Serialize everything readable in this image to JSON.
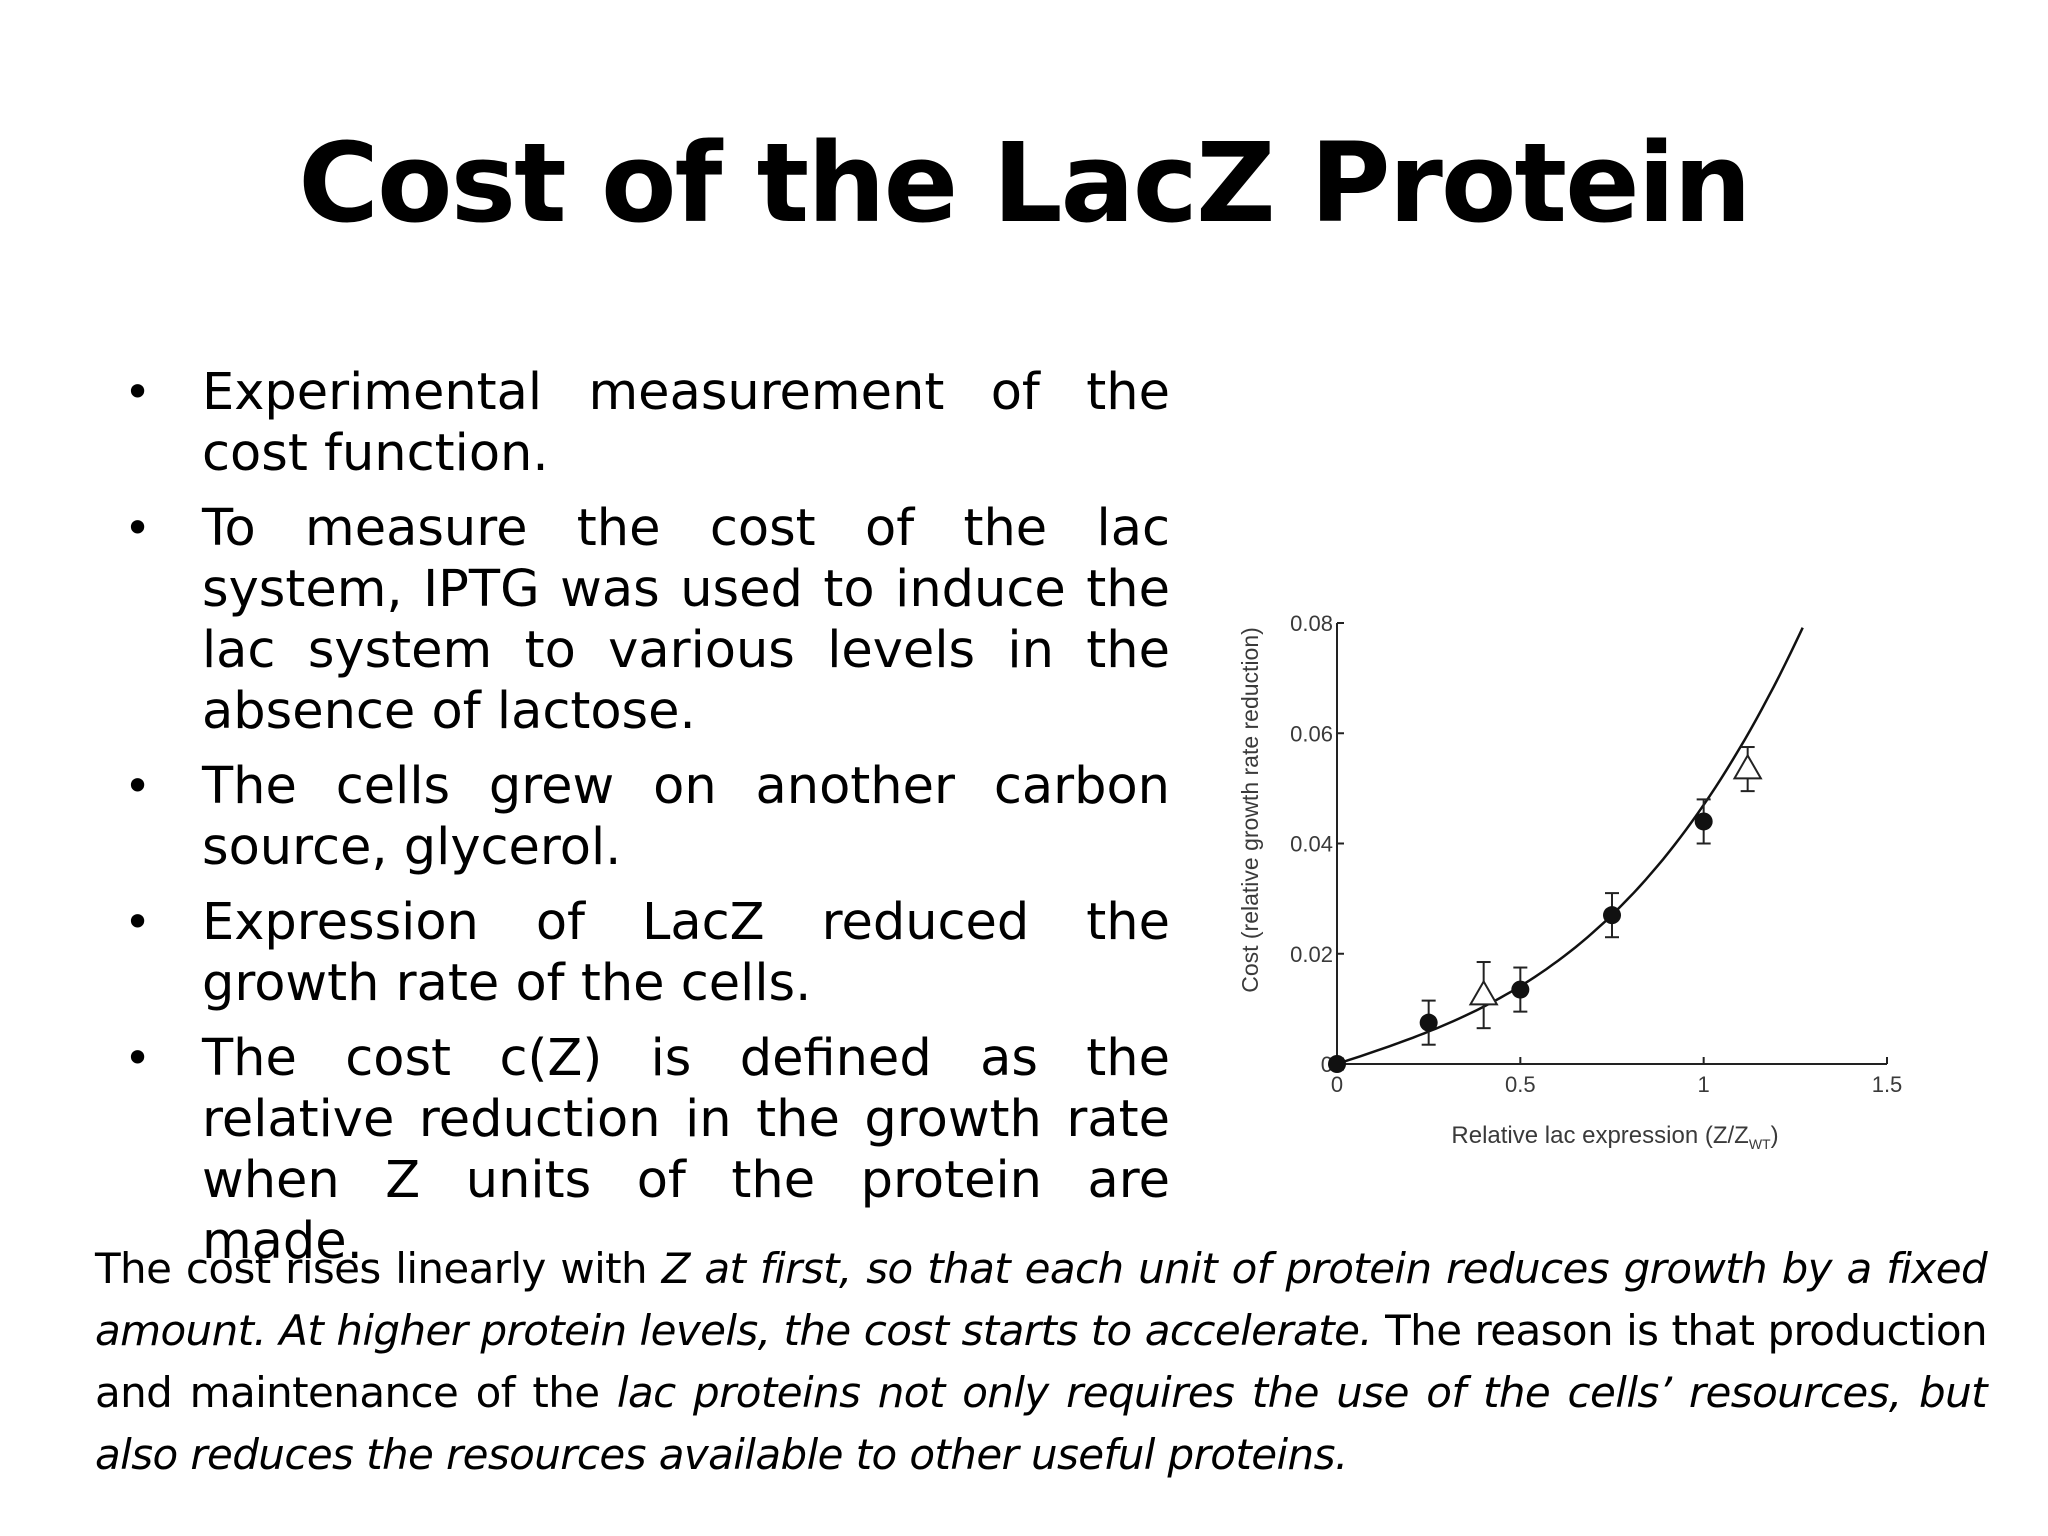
{
  "slide": {
    "title": "Cost of the LacZ Protein",
    "bullets": [
      "Experimental measurement of the cost function.",
      "To measure the cost of the lac system, IPTG was used to induce the lac system to various levels in the absence of lactose.",
      "The cells grew on another carbon source, glycerol.",
      "Expression of LacZ reduced the growth rate of the cells.",
      "The cost c(Z) is defined as the relative reduction in the growth rate when Z units of the protein are made."
    ],
    "caption": {
      "p1": "The cost rises linearly with ",
      "p2_italic": "Z at first, so that each unit of protein reduces growth by a fixed amount. At higher protein levels, the cost starts to accelerate.",
      "p3": " The reason is that production and maintenance of the ",
      "p4_italic": "lac proteins not only requires the use of the cells’ resources, but also reduces the resources available to other useful proteins."
    }
  },
  "chart_data": {
    "type": "scatter",
    "xlabel": "Relative lac expression (Z/Z",
    "xlabel_sub": "WT",
    "xlabel_close": ")",
    "ylabel": "Cost (relative growth rate reduction)",
    "xlim": [
      0,
      1.5
    ],
    "ylim": [
      0,
      0.08
    ],
    "x_ticks": [
      {
        "value": 0,
        "label": "0"
      },
      {
        "value": 0.5,
        "label": "0.5"
      },
      {
        "value": 1,
        "label": "1"
      },
      {
        "value": 1.5,
        "label": "1.5"
      }
    ],
    "y_ticks": [
      {
        "value": 0,
        "label": "0"
      },
      {
        "value": 0.02,
        "label": "0.02"
      },
      {
        "value": 0.04,
        "label": "0.04"
      },
      {
        "value": 0.06,
        "label": "0.06"
      },
      {
        "value": 0.08,
        "label": "0.08"
      }
    ],
    "series": [
      {
        "marker": "filled-circle",
        "points": [
          {
            "x": 0,
            "y": 0.0,
            "err": 0.001
          },
          {
            "x": 0.25,
            "y": 0.0075,
            "err": 0.004
          },
          {
            "x": 0.5,
            "y": 0.0135,
            "err": 0.004
          },
          {
            "x": 0.75,
            "y": 0.027,
            "err": 0.004
          },
          {
            "x": 1.0,
            "y": 0.044,
            "err": 0.004
          }
        ]
      },
      {
        "marker": "open-triangle",
        "points": [
          {
            "x": 0.4,
            "y": 0.0125,
            "err": 0.006
          },
          {
            "x": 1.12,
            "y": 0.0535,
            "err": 0.004
          }
        ]
      }
    ],
    "fit_curve": {
      "description": "accelerating fit through data",
      "y0": 0.0,
      "a": 0.022,
      "b": 0.025,
      "x_max": 1.27
    }
  }
}
